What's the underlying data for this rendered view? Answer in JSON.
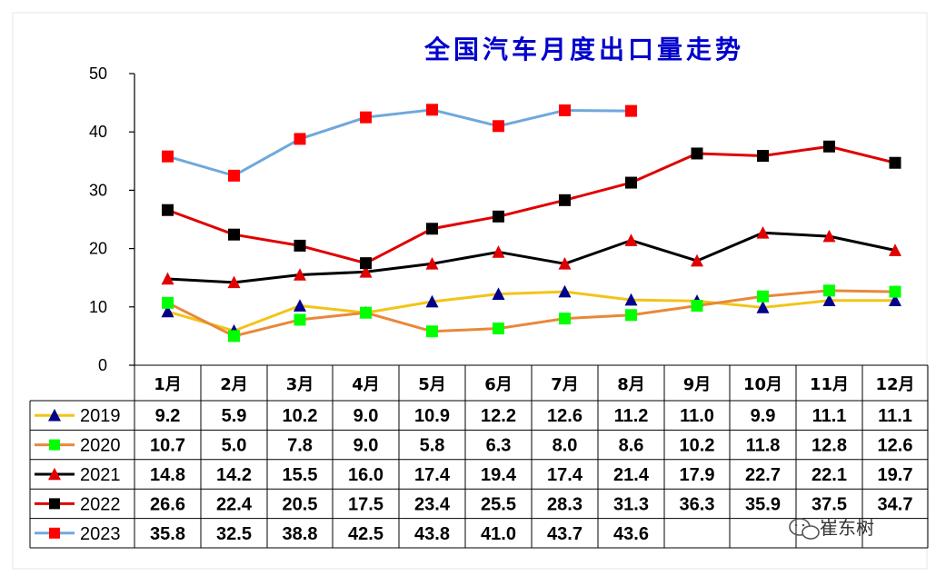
{
  "watermark": {
    "text": "崔东树",
    "icon": "wechat-icon"
  },
  "chart_data": {
    "type": "line",
    "title": "全国汽车月度出口量走势",
    "categories": [
      "1月",
      "2月",
      "3月",
      "4月",
      "5月",
      "6月",
      "7月",
      "8月",
      "9月",
      "10月",
      "11月",
      "12月"
    ],
    "ylim": [
      0,
      50
    ],
    "yticks": [
      0,
      10,
      20,
      30,
      40,
      50
    ],
    "grid": false,
    "legend": "table-left",
    "series": [
      {
        "name": "2019",
        "color": "#f2c418",
        "marker": "triangle",
        "marker_color": "#00008b",
        "values": [
          9.2,
          5.9,
          10.2,
          9.0,
          10.9,
          12.2,
          12.6,
          11.2,
          11.0,
          9.9,
          11.1,
          11.1
        ]
      },
      {
        "name": "2020",
        "color": "#e8883a",
        "marker": "square",
        "marker_color": "#00ff00",
        "values": [
          10.7,
          5.0,
          7.8,
          9.0,
          5.8,
          6.3,
          8.0,
          8.6,
          10.2,
          11.8,
          12.8,
          12.6
        ]
      },
      {
        "name": "2021",
        "color": "#000000",
        "marker": "triangle",
        "marker_color": "#e00000",
        "values": [
          14.8,
          14.2,
          15.5,
          16.0,
          17.4,
          19.4,
          17.4,
          21.4,
          17.9,
          22.7,
          22.1,
          19.7
        ]
      },
      {
        "name": "2022",
        "color": "#e00000",
        "marker": "square",
        "marker_color": "#000000",
        "values": [
          26.6,
          22.4,
          20.5,
          17.5,
          23.4,
          25.5,
          28.3,
          31.3,
          36.3,
          35.9,
          37.5,
          34.7
        ]
      },
      {
        "name": "2023",
        "color": "#6fa8dc",
        "marker": "square",
        "marker_color": "#ff0000",
        "values": [
          35.8,
          32.5,
          38.8,
          42.5,
          43.8,
          41.0,
          43.7,
          43.6,
          null,
          null,
          null,
          null
        ]
      }
    ]
  }
}
